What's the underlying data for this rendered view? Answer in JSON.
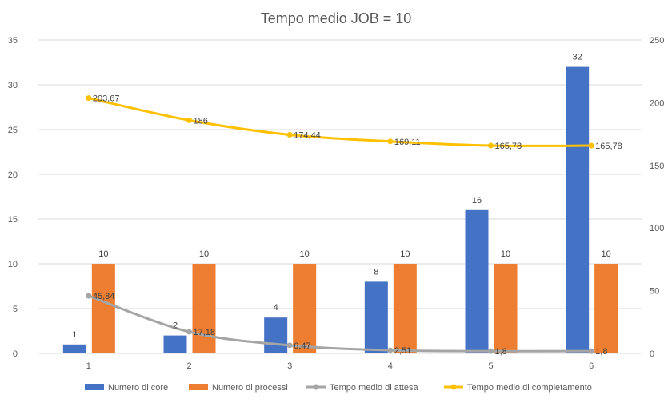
{
  "chart_data": {
    "type": "bar",
    "title": "Tempo medio JOB = 10",
    "categories": [
      "1",
      "2",
      "3",
      "4",
      "5",
      "6"
    ],
    "y_left": {
      "min": 0,
      "max": 35,
      "step": 5,
      "ticks": [
        "0",
        "5",
        "10",
        "15",
        "20",
        "25",
        "30",
        "35"
      ]
    },
    "y_right": {
      "min": 0,
      "max": 250,
      "step": 50,
      "ticks": [
        "0",
        "50",
        "100",
        "150",
        "200",
        "250"
      ]
    },
    "grid": true,
    "legend_position": "bottom",
    "series": [
      {
        "name": "Numero di core",
        "kind": "bar",
        "axis": "left",
        "color": "#4472c4",
        "values": [
          1,
          2,
          4,
          8,
          16,
          32
        ],
        "labels": [
          "1",
          "2",
          "4",
          "8",
          "16",
          "32"
        ]
      },
      {
        "name": "Numero di processi",
        "kind": "bar",
        "axis": "left",
        "color": "#ed7d31",
        "values": [
          10,
          10,
          10,
          10,
          10,
          10
        ],
        "labels": [
          "10",
          "10",
          "10",
          "10",
          "10",
          "10"
        ]
      },
      {
        "name": "Tempo medio di attesa",
        "kind": "line",
        "axis": "right",
        "color": "#a5a5a5",
        "values": [
          45.84,
          17.18,
          6.47,
          2.51,
          1.8,
          1.8
        ],
        "labels": [
          "45,84",
          "17,18",
          "6,47",
          "2,51",
          "1,8",
          "1,8"
        ]
      },
      {
        "name": "Tempo medio di completamento",
        "kind": "line",
        "axis": "right",
        "color": "#ffc000",
        "values": [
          203.67,
          186,
          174.44,
          169.11,
          165.78,
          165.78
        ],
        "labels": [
          "203,67",
          "186",
          "174,44",
          "169,11",
          "165,78",
          "165,78"
        ]
      }
    ]
  }
}
